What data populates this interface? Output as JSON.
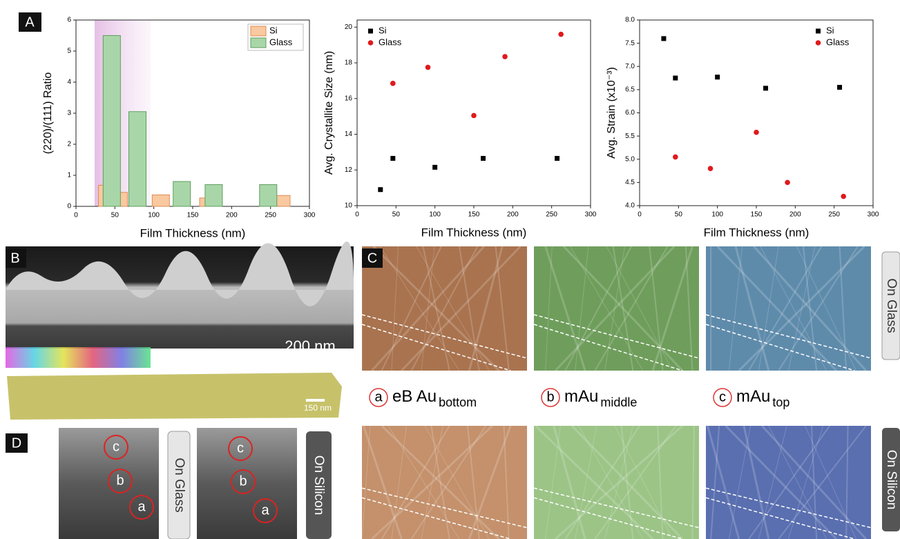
{
  "chart_data": [
    {
      "type": "bar",
      "x_label": "Film Thickness (nm)",
      "y_label": "(220)/(111) Ratio",
      "xlim": [
        0,
        300
      ],
      "xticks": [
        0,
        50,
        100,
        150,
        200,
        250,
        300
      ],
      "ylim": [
        0,
        6
      ],
      "yticks": [
        0,
        1,
        2,
        3,
        4,
        5,
        6
      ],
      "legend": "upper right",
      "series": [
        {
          "name": "Si",
          "color": "#f9c9a0",
          "edgecolor": "#de8a55",
          "x": [
            40,
            55,
            109,
            170,
            264
          ],
          "values": [
            0.68,
            0.45,
            0.37,
            0.27,
            0.35
          ]
        },
        {
          "name": "Glass",
          "color": "#a9d6a9",
          "edgecolor": "#5d9f5d",
          "x": [
            46,
            79,
            136,
            177,
            247
          ],
          "values": [
            5.5,
            3.05,
            0.8,
            0.7,
            0.7
          ]
        }
      ]
    },
    {
      "type": "scatter",
      "x_label": "Film Thickness (nm)",
      "y_label": "Avg. Crystallite Size (nm)",
      "xlim": [
        0,
        300
      ],
      "xticks": [
        0,
        50,
        100,
        150,
        200,
        250,
        300
      ],
      "ylim": [
        10,
        20.4
      ],
      "yticks": [
        10,
        12,
        14,
        16,
        18,
        20
      ],
      "legend": "upper left",
      "series": [
        {
          "name": "Si",
          "color": "#000000",
          "marker": "square",
          "x": [
            30,
            46,
            100,
            162,
            257
          ],
          "values": [
            10.9,
            12.65,
            12.15,
            12.65,
            12.65
          ]
        },
        {
          "name": "Glass",
          "color": "#e0191c",
          "marker": "circle",
          "x": [
            46,
            91,
            150,
            190,
            262
          ],
          "values": [
            16.85,
            17.75,
            15.05,
            18.35,
            19.6
          ]
        }
      ]
    },
    {
      "type": "scatter",
      "x_label": "Film Thickness (nm)",
      "y_label": "Avg. Strain (x10⁻³)",
      "xlim": [
        0,
        300
      ],
      "xticks": [
        0,
        50,
        100,
        150,
        200,
        250,
        300
      ],
      "ylim": [
        4,
        8
      ],
      "yticks": [
        {
          "value": 4,
          "label": "4.0"
        },
        {
          "value": 4.5,
          "label": "4.5"
        },
        {
          "value": 5,
          "label": "5.0"
        },
        {
          "value": 5.5,
          "label": "5.5"
        },
        {
          "value": 6,
          "label": "6.0"
        },
        {
          "value": 6.5,
          "label": "6.5"
        },
        {
          "value": 7,
          "label": "7.0"
        },
        {
          "value": 7.5,
          "label": "7.5"
        },
        {
          "value": 8,
          "label": "8.0"
        }
      ],
      "legend": "upper right",
      "series": [
        {
          "name": "Si",
          "color": "#000000",
          "marker": "square",
          "x": [
            31,
            46,
            100,
            162,
            257
          ],
          "values": [
            7.6,
            6.75,
            6.77,
            6.53,
            6.55
          ]
        },
        {
          "name": "Glass",
          "color": "#e0191c",
          "marker": "circle",
          "x": [
            46,
            91,
            150,
            190,
            262
          ],
          "values": [
            5.05,
            4.8,
            5.58,
            4.5,
            4.2
          ]
        }
      ]
    }
  ],
  "panels": {
    "a_label": "A",
    "b_label": "B",
    "scale_200": "200 nm",
    "scale_150": "150 nm",
    "c_label": "C",
    "d_label": "D",
    "c_on_glass": "On Glass",
    "c_on_silicon": "On Silicon",
    "c_captions": [
      {
        "marker": "a",
        "text": "eB Au",
        "sub": "bottom"
      },
      {
        "marker": "b",
        "text": "mAu",
        "sub": "middle"
      },
      {
        "marker": "c",
        "text": "mAu",
        "sub": "top"
      }
    ],
    "d_on_glass": "On Glass",
    "d_on_silicon": "On Silicon",
    "d_markers": [
      "c",
      "b",
      "a"
    ]
  }
}
